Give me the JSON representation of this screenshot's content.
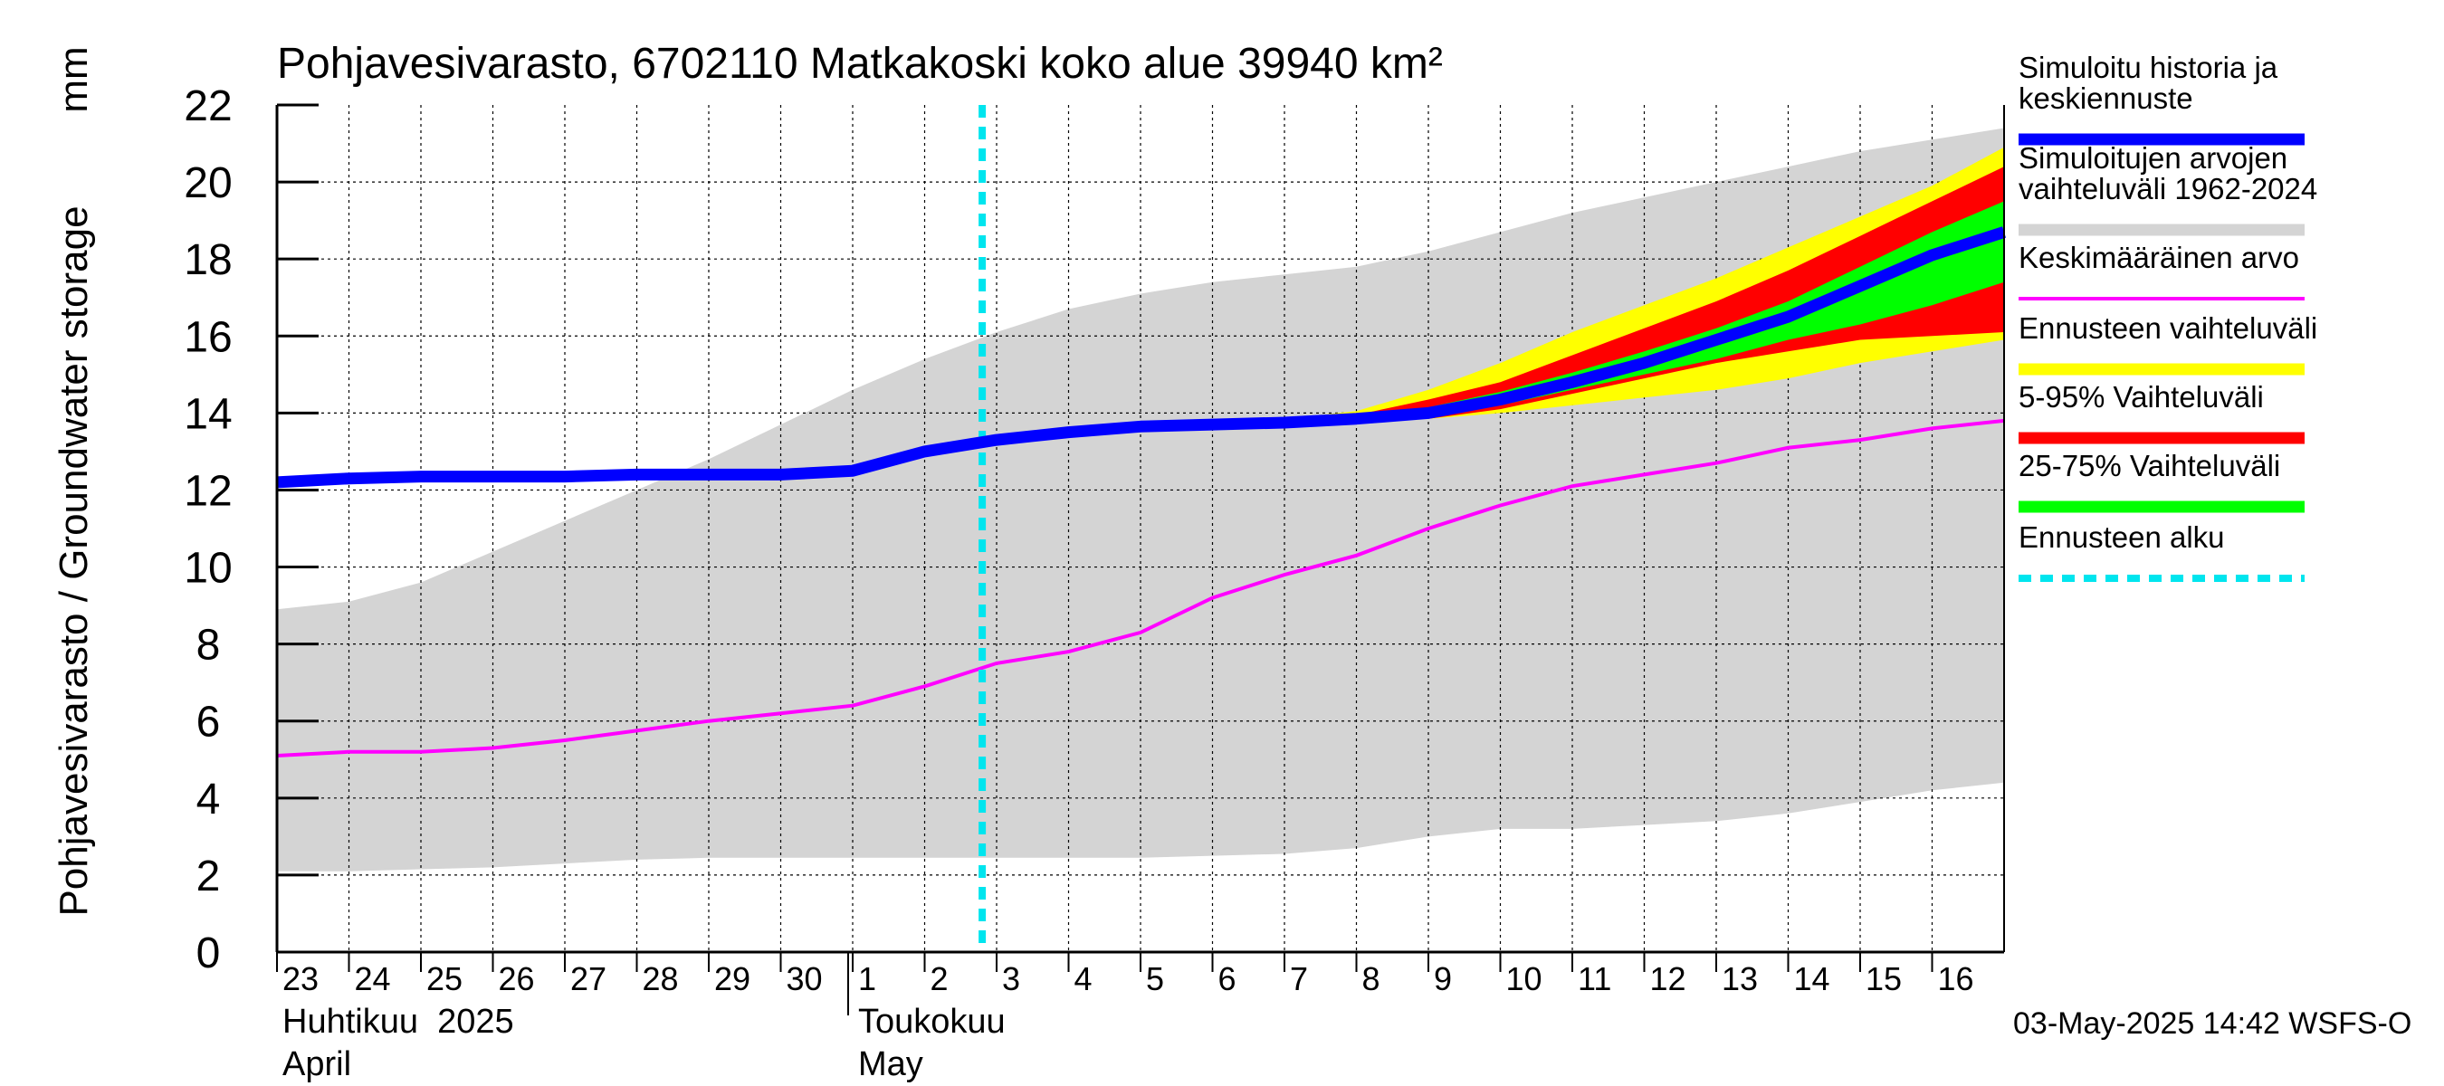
{
  "chart_data": {
    "type": "area",
    "title": "Pohjavesivarasto, 6702110 Matkakoski koko alue 39940 km²",
    "ylabel": "Pohjavesivarasto / Groundwater storage",
    "yunit": "mm",
    "ylim": [
      0,
      22
    ],
    "yticks": [
      0,
      2,
      4,
      6,
      8,
      10,
      12,
      14,
      16,
      18,
      20,
      22
    ],
    "grid": true,
    "x_day_labels": [
      "23",
      "24",
      "25",
      "26",
      "27",
      "28",
      "29",
      "30",
      "1",
      "2",
      "3",
      "4",
      "5",
      "6",
      "7",
      "8",
      "9",
      "10",
      "11",
      "12",
      "13",
      "14",
      "15",
      "16"
    ],
    "month_labels": [
      {
        "fi": "Huhtikuu  2025",
        "en": "April",
        "start_day_index": 0
      },
      {
        "fi": "Toukokuu",
        "en": "May",
        "start_day_index": 8
      }
    ],
    "forecast_start_day_index": 9.8,
    "timestamp": "03-May-2025 14:42 WSFS-O",
    "legend": [
      {
        "label": "Simuloitu historia ja\nkeskiennuste",
        "color": "#0000ff",
        "style": "thick"
      },
      {
        "label": "Simuloitujen arvojen\nvaihteluväli 1962-2024",
        "color": "#d4d4d4",
        "style": "thick"
      },
      {
        "label": "Keskimääräinen arvo",
        "color": "#ff00ff",
        "style": "thin"
      },
      {
        "label": "Ennusteen vaihteluväli",
        "color": "#ffff00",
        "style": "thick"
      },
      {
        "label": "5-95% Vaihteluväli",
        "color": "#ff0000",
        "style": "thick"
      },
      {
        "label": "25-75% Vaihteluväli",
        "color": "#00ff00",
        "style": "thick"
      },
      {
        "label": "Ennusteen alku",
        "color": "#00e5ee",
        "style": "dashed"
      }
    ],
    "series": {
      "history_range": {
        "name": "Simuloitujen arvojen vaihteluväli 1962-2024",
        "x": [
          0,
          1,
          2,
          3,
          4,
          5,
          6,
          7,
          8,
          9,
          10,
          11,
          12,
          13,
          14,
          15,
          16,
          17,
          18,
          19,
          20,
          21,
          22,
          23,
          24
        ],
        "upper": [
          8.9,
          9.1,
          9.6,
          10.4,
          11.2,
          12.0,
          12.8,
          13.7,
          14.6,
          15.4,
          16.1,
          16.7,
          17.1,
          17.4,
          17.6,
          17.8,
          18.2,
          18.7,
          19.2,
          19.6,
          20.0,
          20.4,
          20.8,
          21.1,
          21.4
        ],
        "lower": [
          2.1,
          2.1,
          2.15,
          2.2,
          2.3,
          2.4,
          2.45,
          2.45,
          2.45,
          2.45,
          2.45,
          2.45,
          2.45,
          2.5,
          2.55,
          2.7,
          3.0,
          3.2,
          3.2,
          3.3,
          3.4,
          3.6,
          3.9,
          4.2,
          4.4
        ]
      },
      "simulated": {
        "name": "Simuloitu historia ja keskiennuste",
        "x": [
          0,
          1,
          2,
          3,
          4,
          5,
          6,
          7,
          8,
          9,
          10,
          11,
          12,
          13,
          14,
          15,
          16,
          17,
          18,
          19,
          20,
          21,
          22,
          23,
          24
        ],
        "values": [
          12.2,
          12.3,
          12.35,
          12.35,
          12.35,
          12.4,
          12.4,
          12.4,
          12.5,
          13.0,
          13.3,
          13.5,
          13.65,
          13.7,
          13.75,
          13.85,
          14.0,
          14.35,
          14.8,
          15.3,
          15.9,
          16.5,
          17.3,
          18.1,
          18.7
        ]
      },
      "mean": {
        "name": "Keskimääräinen arvo",
        "x": [
          0,
          1,
          2,
          3,
          4,
          5,
          6,
          7,
          8,
          9,
          10,
          11,
          12,
          13,
          14,
          15,
          16,
          17,
          18,
          19,
          20,
          21,
          22,
          23,
          24
        ],
        "values": [
          5.1,
          5.2,
          5.2,
          5.3,
          5.5,
          5.75,
          6.0,
          6.2,
          6.4,
          6.9,
          7.5,
          7.8,
          8.3,
          9.2,
          9.8,
          10.3,
          11.0,
          11.6,
          12.1,
          12.4,
          12.7,
          13.1,
          13.3,
          13.6,
          13.8
        ]
      },
      "forecast_range": {
        "name": "Ennusteen vaihteluväli",
        "x": [
          14,
          15,
          16,
          17,
          18,
          19,
          20,
          21,
          22,
          23,
          24
        ],
        "upper": [
          13.85,
          14.05,
          14.6,
          15.3,
          16.1,
          16.8,
          17.5,
          18.3,
          19.1,
          19.9,
          20.9
        ],
        "lower": [
          13.75,
          13.8,
          13.85,
          14.0,
          14.2,
          14.4,
          14.6,
          14.9,
          15.3,
          15.6,
          15.9
        ]
      },
      "p5_95": {
        "name": "5-95% Vaihteluväli",
        "x": [
          14,
          15,
          16,
          17,
          18,
          19,
          20,
          21,
          22,
          23,
          24
        ],
        "upper": [
          13.8,
          13.95,
          14.35,
          14.8,
          15.5,
          16.2,
          16.9,
          17.7,
          18.6,
          19.5,
          20.4
        ],
        "lower": [
          13.75,
          13.8,
          13.85,
          14.1,
          14.5,
          14.9,
          15.3,
          15.6,
          15.9,
          16.0,
          16.1
        ]
      },
      "p25_75": {
        "name": "25-75% Vaihteluväli",
        "x": [
          14,
          15,
          16,
          17,
          18,
          19,
          20,
          21,
          22,
          23,
          24
        ],
        "upper": [
          13.8,
          13.9,
          14.15,
          14.55,
          15.05,
          15.6,
          16.2,
          16.9,
          17.8,
          18.7,
          19.5
        ],
        "lower": [
          13.75,
          13.8,
          13.9,
          14.2,
          14.6,
          15.0,
          15.4,
          15.9,
          16.3,
          16.8,
          17.4
        ]
      }
    }
  }
}
